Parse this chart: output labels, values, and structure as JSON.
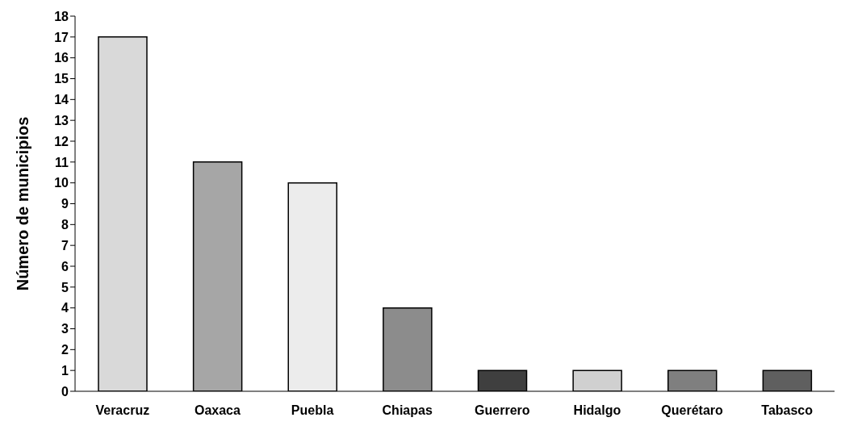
{
  "chart_data": {
    "type": "bar",
    "ylabel": "Número de municipios",
    "categories": [
      "Veracruz",
      "Oaxaca",
      "Puebla",
      "Chiapas",
      "Guerrero",
      "Hidalgo",
      "Querétaro",
      "Tabasco"
    ],
    "values": [
      17,
      11,
      10,
      4,
      1,
      1,
      1,
      1
    ],
    "colors": [
      "#d9d9d9",
      "#a6a6a6",
      "#ececec",
      "#8c8c8c",
      "#3f3f3f",
      "#d0d0d0",
      "#7f7f7f",
      "#5f5f5f"
    ],
    "ylim": [
      0,
      18
    ],
    "yticks": [
      0,
      1,
      2,
      3,
      4,
      5,
      6,
      7,
      8,
      9,
      10,
      11,
      12,
      13,
      14,
      15,
      16,
      17,
      18
    ],
    "grid": false
  }
}
